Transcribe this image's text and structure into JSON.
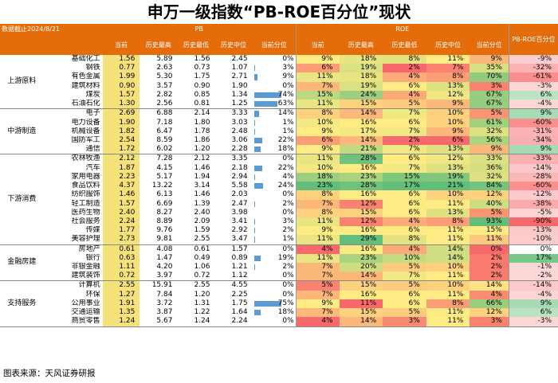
{
  "title": "申万一级指数“PB-ROE百分位”现状",
  "date_label": "数据截止2024/8/21",
  "source": "图表来源：天风证券研报",
  "headers": {
    "pb": "PB",
    "roe": "ROE",
    "pb_roe": "PB-ROE百分位",
    "sub": [
      "当前",
      "历史最高",
      "历史最低",
      "历史中位",
      "当前分位"
    ]
  },
  "chart_data": {
    "type": "table",
    "title": "申万一级指数“PB-ROE百分位”现状",
    "groups": [
      {
        "name": "上游原料",
        "rows": [
          {
            "industry": "基础化工",
            "pb": [
              "1.56",
              "5.89",
              "1.56",
              "2.45"
            ],
            "pb_pct": "0%",
            "pb_pct_v": 0,
            "roe": [
              "9%",
              "18%",
              "8%",
              "11%"
            ],
            "roe_pct": "9%",
            "roe_pct_v": 9,
            "pbroe": "-9%",
            "pbroe_v": -9
          },
          {
            "industry": "钢铁",
            "pb": [
              "0.77",
              "2.63",
              "0.73",
              "1.07"
            ],
            "pb_pct": "3%",
            "pb_pct_v": 3,
            "roe": [
              "6%",
              "19%",
              "2%",
              "7%"
            ],
            "roe_pct": "35%",
            "roe_pct_v": 35,
            "pbroe": "-32%",
            "pbroe_v": -32
          },
          {
            "industry": "有色金属",
            "pb": [
              "1.99",
              "5.30",
              "1.75",
              "2.71"
            ],
            "pb_pct": "9%",
            "pb_pct_v": 9,
            "roe": [
              "11%",
              "18%",
              "4%",
              "8%"
            ],
            "roe_pct": "70%",
            "roe_pct_v": 70,
            "pbroe": "-61%",
            "pbroe_v": -61
          },
          {
            "industry": "建筑材料",
            "pb": [
              "0.90",
              "3.57",
              "0.90",
              "1.90"
            ],
            "pb_pct": "0%",
            "pb_pct_v": 0,
            "roe": [
              "7%",
              "19%",
              "6%",
              "13%"
            ],
            "roe_pct": "3%",
            "roe_pct_v": 3,
            "pbroe": "-3%",
            "pbroe_v": -3
          },
          {
            "industry": "煤炭",
            "pb": [
              "1.57",
              "2.82",
              "0.85",
              "1.34"
            ],
            "pb_pct": "74%",
            "pb_pct_v": 74,
            "roe": [
              "15%",
              "24%",
              "4%",
              "12%"
            ],
            "roe_pct": "67%",
            "roe_pct_v": 67,
            "pbroe": "6%",
            "pbroe_v": 6
          },
          {
            "industry": "石油石化",
            "pb": [
              "1.30",
              "2.56",
              "0.81",
              "1.25"
            ],
            "pb_pct": "63%",
            "pb_pct_v": 63,
            "roe": [
              "11%",
              "15%",
              "5%",
              "9%"
            ],
            "roe_pct": "67%",
            "roe_pct_v": 67,
            "pbroe": "-4%",
            "pbroe_v": -4
          }
        ]
      },
      {
        "name": "中游制造",
        "rows": [
          {
            "industry": "电子",
            "pb": [
              "2.69",
              "6.88",
              "2.14",
              "3.33"
            ],
            "pb_pct": "14%",
            "pb_pct_v": 14,
            "roe": [
              "8%",
              "14%",
              "7%",
              "10%"
            ],
            "roe_pct": "5%",
            "roe_pct_v": 5,
            "pbroe": "9%",
            "pbroe_v": 9
          },
          {
            "industry": "电力设备",
            "pb": [
              "1.90",
              "7.18",
              "1.80",
              "3.03"
            ],
            "pb_pct": "1%",
            "pb_pct_v": 1,
            "roe": [
              "10%",
              "16%",
              "6%",
              "10%"
            ],
            "roe_pct": "61%",
            "roe_pct_v": 61,
            "pbroe": "-60%",
            "pbroe_v": -60
          },
          {
            "industry": "机械设备",
            "pb": [
              "1.82",
              "6.47",
              "1.78",
              "2.48"
            ],
            "pb_pct": "1%",
            "pb_pct_v": 1,
            "roe": [
              "9%",
              "17%",
              "7%",
              "9%"
            ],
            "roe_pct": "32%",
            "roe_pct_v": 32,
            "pbroe": "-31%",
            "pbroe_v": -31
          },
          {
            "industry": "国防军工",
            "pb": [
              "2.54",
              "8.59",
              "1.86",
              "3.06"
            ],
            "pb_pct": "22%",
            "pb_pct_v": 22,
            "roe": [
              "6%",
              "14%",
              "2%",
              "6%"
            ],
            "roe_pct": "56%",
            "roe_pct_v": 56,
            "pbroe": "-34%",
            "pbroe_v": -34
          },
          {
            "industry": "通信",
            "pb": [
              "1.72",
              "6.02",
              "1.20",
              "2.28"
            ],
            "pb_pct": "18%",
            "pb_pct_v": 18,
            "roe": [
              "9%",
              "21%",
              "7%",
              "13%"
            ],
            "roe_pct": "9%",
            "roe_pct_v": 9,
            "pbroe": "9%",
            "pbroe_v": 9
          }
        ]
      },
      {
        "name": "下游消费",
        "rows": [
          {
            "industry": "农林牧渔",
            "pb": [
              "2.12",
              "7.28",
              "2.12",
              "3.35"
            ],
            "pb_pct": "0%",
            "pb_pct_v": 0,
            "roe": [
              "11%",
              "28%",
              "6%",
              "12%"
            ],
            "roe_pct": "33%",
            "roe_pct_v": 33,
            "pbroe": "-33%",
            "pbroe_v": -33
          },
          {
            "industry": "汽车",
            "pb": [
              "1.87",
              "4.15",
              "1.46",
              "2.18"
            ],
            "pb_pct": "22%",
            "pb_pct_v": 22,
            "roe": [
              "10%",
              "16%",
              "7%",
              "13%"
            ],
            "roe_pct": "36%",
            "roe_pct_v": 36,
            "pbroe": "-14%",
            "pbroe_v": -14
          },
          {
            "industry": "家用电器",
            "pb": [
              "2.23",
              "5.17",
              "1.94",
              "2.94"
            ],
            "pb_pct": "4%",
            "pb_pct_v": 4,
            "roe": [
              "18%",
              "23%",
              "15%",
              "19%"
            ],
            "roe_pct": "32%",
            "roe_pct_v": 32,
            "pbroe": "-28%",
            "pbroe_v": -28
          },
          {
            "industry": "食品饮料",
            "pb": [
              "4.37",
              "13.22",
              "3.14",
              "5.58"
            ],
            "pb_pct": "24%",
            "pb_pct_v": 24,
            "roe": [
              "23%",
              "28%",
              "17%",
              "21%"
            ],
            "roe_pct": "84%",
            "roe_pct_v": 84,
            "pbroe": "-60%",
            "pbroe_v": -60
          },
          {
            "industry": "纺织服饰",
            "pb": [
              "1.46",
              "6.13",
              "1.46",
              "2.03"
            ],
            "pb_pct": "0%",
            "pb_pct_v": 0,
            "roe": [
              "8%",
              "16%",
              "6%",
              "10%"
            ],
            "roe_pct": "12%",
            "roe_pct_v": 12,
            "pbroe": "-12%",
            "pbroe_v": -12
          },
          {
            "industry": "轻工制造",
            "pb": [
              "1.57",
              "6.69",
              "1.39",
              "2.47"
            ],
            "pb_pct": "2%",
            "pb_pct_v": 2,
            "roe": [
              "7%",
              "12%",
              "6%",
              "11%"
            ],
            "roe_pct": "40%",
            "roe_pct_v": 40,
            "pbroe": "-38%",
            "pbroe_v": -38
          },
          {
            "industry": "医药生物",
            "pb": [
              "2.40",
              "8.27",
              "2.40",
              "3.98"
            ],
            "pb_pct": "0%",
            "pb_pct_v": 0,
            "roe": [
              "8%",
              "15%",
              "6%",
              "13%"
            ],
            "roe_pct": "5%",
            "roe_pct_v": 5,
            "pbroe": "-5%",
            "pbroe_v": -5
          },
          {
            "industry": "社会服务",
            "pb": [
              "2.24",
              "8.89",
              "2.09",
              "3.41"
            ],
            "pb_pct": "3%",
            "pb_pct_v": 3,
            "roe": [
              "11%",
              "12%",
              "4%",
              "8%"
            ],
            "roe_pct": "93%",
            "roe_pct_v": 93,
            "pbroe": "-90%",
            "pbroe_v": -90
          },
          {
            "industry": "传媒",
            "pb": [
              "1.77",
              "9.76",
              "1.59",
              "2.92"
            ],
            "pb_pct": "2%",
            "pb_pct_v": 2,
            "roe": [
              "9%",
              "16%",
              "6%",
              "11%"
            ],
            "roe_pct": "15%",
            "roe_pct_v": 15,
            "pbroe": "-13%",
            "pbroe_v": -13
          },
          {
            "industry": "美容护理",
            "pb": [
              "2.73",
              "9.81",
              "2.55",
              "3.47"
            ],
            "pb_pct": "1%",
            "pb_pct_v": 1,
            "roe": [
              "11%",
              "29%",
              "8%",
              "11%"
            ],
            "roe_pct": "11%",
            "roe_pct_v": 11,
            "pbroe": "-10%",
            "pbroe_v": -10
          }
        ]
      },
      {
        "name": "金融房建",
        "rows": [
          {
            "industry": "房地产",
            "pb": [
              "0.61",
              "4.08",
              "0.61",
              "1.57"
            ],
            "pb_pct": "0%",
            "pb_pct_v": 0,
            "roe": [
              "4%",
              "16%",
              "4%",
              "14%"
            ],
            "roe_pct": "0%",
            "roe_pct_v": 0,
            "pbroe": "0%",
            "pbroe_v": 0
          },
          {
            "industry": "银行",
            "pb": [
              "0.63",
              "1.47",
              "0.49",
              "0.89"
            ],
            "pb_pct": "19%",
            "pb_pct_v": 19,
            "roe": [
              "11%",
              "23%",
              "10%",
              "14%"
            ],
            "roe_pct": "2%",
            "roe_pct_v": 2,
            "pbroe": "17%",
            "pbroe_v": 17
          },
          {
            "industry": "非银金融",
            "pb": [
              "1.11",
              "4.20",
              "1.06",
              "1.21"
            ],
            "pb_pct": "2%",
            "pb_pct_v": 2,
            "roe": [
              "7%",
              "20%",
              "5%",
              "10%"
            ],
            "roe_pct": "2%",
            "roe_pct_v": 2,
            "pbroe": "-1%",
            "pbroe_v": -1
          },
          {
            "industry": "建筑装饰",
            "pb": [
              "0.72",
              "3.97",
              "0.72",
              "1.12"
            ],
            "pb_pct": "0%",
            "pb_pct_v": 0,
            "roe": [
              "7%",
              "14%",
              "7%",
              "11%"
            ],
            "roe_pct": "2%",
            "roe_pct_v": 2,
            "pbroe": "-2%",
            "pbroe_v": -2
          }
        ]
      },
      {
        "name": "支持服务",
        "rows": [
          {
            "industry": "计算机",
            "pb": [
              "2.55",
              "15.91",
              "2.55",
              "4.55"
            ],
            "pb_pct": "0%",
            "pb_pct_v": 0,
            "roe": [
              "5%",
              "15%",
              "5%",
              "10%"
            ],
            "roe_pct": "14%",
            "roe_pct_v": 14,
            "pbroe": "-14%",
            "pbroe_v": -14
          },
          {
            "industry": "环保",
            "pb": [
              "1.27",
              "7.84",
              "1.20",
              "2.25"
            ],
            "pb_pct": "0%",
            "pb_pct_v": 0,
            "roe": [
              "7%",
              "16%",
              "6%",
              "11%"
            ],
            "roe_pct": "4%",
            "roe_pct_v": 4,
            "pbroe": "-4%",
            "pbroe_v": -4
          },
          {
            "industry": "公用事业",
            "pb": [
              "1.91",
              "3.72",
              "1.31",
              "1.75"
            ],
            "pb_pct": "75%",
            "pb_pct_v": 75,
            "roe": [
              "9%",
              "11%",
              "6%",
              "8%"
            ],
            "roe_pct": "66%",
            "roe_pct_v": 66,
            "pbroe": "9%",
            "pbroe_v": 9
          },
          {
            "industry": "交通运输",
            "pb": [
              "1.35",
              "3.87",
              "1.22",
              "1.64"
            ],
            "pb_pct": "18%",
            "pb_pct_v": 18,
            "roe": [
              "7%",
              "15%",
              "5%",
              "11%"
            ],
            "roe_pct": "12%",
            "roe_pct_v": 12,
            "pbroe": "6%",
            "pbroe_v": 6
          },
          {
            "industry": "商贸零售",
            "pb": [
              "1.24",
              "5.67",
              "1.24",
              "2.24"
            ],
            "pb_pct": "0%",
            "pb_pct_v": 0,
            "roe": [
              "4%",
              "14%",
              "3%",
              "11%"
            ],
            "roe_pct": "3%",
            "roe_pct_v": 3,
            "pbroe": "-3%",
            "pbroe_v": -3
          }
        ]
      }
    ]
  }
}
